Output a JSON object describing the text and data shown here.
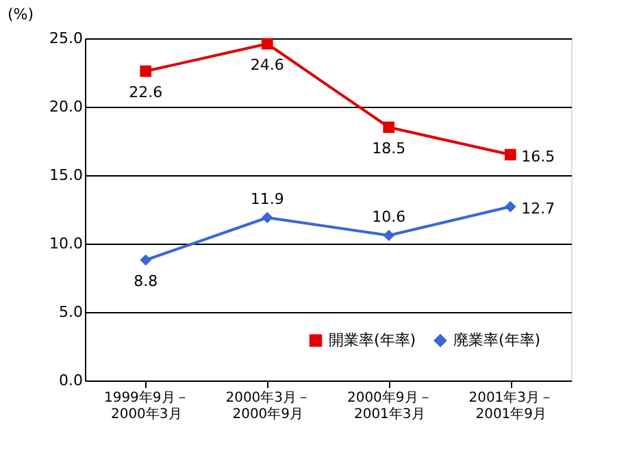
{
  "chart_data": {
    "type": "line",
    "ylabel": "(%)",
    "categories": [
      "1999年9月－2000年3月",
      "2000年3月－2000年9月",
      "2000年9月－2001年3月",
      "2001年3月－2001年9月"
    ],
    "series": [
      {
        "name": "開業率(年率)",
        "color": "#e00000",
        "marker": "square",
        "values": [
          22.6,
          24.6,
          18.5,
          16.5
        ]
      },
      {
        "name": "廃業率(年率)",
        "color": "#3a66d8",
        "marker": "diamond",
        "values": [
          8.8,
          11.9,
          10.6,
          12.7
        ]
      }
    ],
    "ylim": [
      0,
      25
    ],
    "yticks": [
      {
        "value": 0,
        "label": "0.0"
      },
      {
        "value": 5,
        "label": "5.0"
      },
      {
        "value": 10,
        "label": "10.0"
      },
      {
        "value": 15,
        "label": "15.0"
      },
      {
        "value": 20,
        "label": "20.0"
      },
      {
        "value": 25,
        "label": "25.0"
      }
    ],
    "grid": "y",
    "legend": "bottom right",
    "data_labels": true
  }
}
